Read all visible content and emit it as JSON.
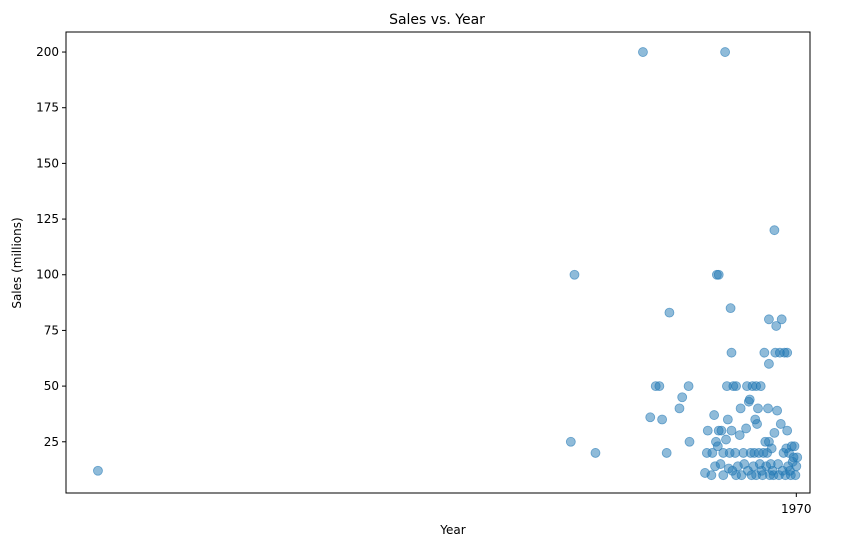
{
  "chart_data": {
    "type": "scatter",
    "title": "Sales vs. Year",
    "xlabel": "Year",
    "ylabel": "Sales (millions)",
    "xticks": [
      1970
    ],
    "yticks": [
      25,
      50,
      75,
      100,
      125,
      150,
      175,
      200
    ],
    "xlim": [
      1890,
      1971.5
    ],
    "ylim": [
      2,
      209
    ],
    "grid": false,
    "marker_color": "#1f77b4",
    "marker_alpha": 0.5,
    "points": [
      {
        "x": 1893.5,
        "y": 12
      },
      {
        "x": 1945.3,
        "y": 25
      },
      {
        "x": 1945.7,
        "y": 100
      },
      {
        "x": 1948.0,
        "y": 20
      },
      {
        "x": 1953.2,
        "y": 200
      },
      {
        "x": 1954.0,
        "y": 36
      },
      {
        "x": 1954.6,
        "y": 50
      },
      {
        "x": 1955.0,
        "y": 50
      },
      {
        "x": 1955.3,
        "y": 35
      },
      {
        "x": 1955.8,
        "y": 20
      },
      {
        "x": 1956.1,
        "y": 83
      },
      {
        "x": 1957.2,
        "y": 40
      },
      {
        "x": 1957.5,
        "y": 45
      },
      {
        "x": 1958.2,
        "y": 50
      },
      {
        "x": 1958.3,
        "y": 25
      },
      {
        "x": 1960.0,
        "y": 11
      },
      {
        "x": 1960.2,
        "y": 20
      },
      {
        "x": 1960.3,
        "y": 30
      },
      {
        "x": 1960.7,
        "y": 10
      },
      {
        "x": 1960.8,
        "y": 20
      },
      {
        "x": 1961.0,
        "y": 37
      },
      {
        "x": 1961.1,
        "y": 14
      },
      {
        "x": 1961.2,
        "y": 25
      },
      {
        "x": 1961.3,
        "y": 100
      },
      {
        "x": 1961.4,
        "y": 23
      },
      {
        "x": 1961.5,
        "y": 30
      },
      {
        "x": 1961.5,
        "y": 100
      },
      {
        "x": 1961.7,
        "y": 15
      },
      {
        "x": 1961.8,
        "y": 30
      },
      {
        "x": 1962.0,
        "y": 10
      },
      {
        "x": 1962.0,
        "y": 20
      },
      {
        "x": 1962.2,
        "y": 200
      },
      {
        "x": 1962.3,
        "y": 26
      },
      {
        "x": 1962.4,
        "y": 50
      },
      {
        "x": 1962.5,
        "y": 35
      },
      {
        "x": 1962.6,
        "y": 13
      },
      {
        "x": 1962.7,
        "y": 20
      },
      {
        "x": 1962.8,
        "y": 85
      },
      {
        "x": 1962.9,
        "y": 65
      },
      {
        "x": 1962.9,
        "y": 30
      },
      {
        "x": 1963.0,
        "y": 12
      },
      {
        "x": 1963.1,
        "y": 50
      },
      {
        "x": 1963.3,
        "y": 20
      },
      {
        "x": 1963.4,
        "y": 10
      },
      {
        "x": 1963.4,
        "y": 50
      },
      {
        "x": 1963.6,
        "y": 14
      },
      {
        "x": 1963.8,
        "y": 28
      },
      {
        "x": 1963.9,
        "y": 40
      },
      {
        "x": 1964.0,
        "y": 10
      },
      {
        "x": 1964.2,
        "y": 20
      },
      {
        "x": 1964.3,
        "y": 15
      },
      {
        "x": 1964.5,
        "y": 31
      },
      {
        "x": 1964.6,
        "y": 50
      },
      {
        "x": 1964.7,
        "y": 12
      },
      {
        "x": 1964.8,
        "y": 43
      },
      {
        "x": 1964.9,
        "y": 44
      },
      {
        "x": 1965.0,
        "y": 20
      },
      {
        "x": 1965.1,
        "y": 10
      },
      {
        "x": 1965.2,
        "y": 50
      },
      {
        "x": 1965.3,
        "y": 14
      },
      {
        "x": 1965.4,
        "y": 20
      },
      {
        "x": 1965.5,
        "y": 35
      },
      {
        "x": 1965.6,
        "y": 50
      },
      {
        "x": 1965.6,
        "y": 10
      },
      {
        "x": 1965.7,
        "y": 33
      },
      {
        "x": 1965.8,
        "y": 40
      },
      {
        "x": 1965.9,
        "y": 20
      },
      {
        "x": 1966.0,
        "y": 15
      },
      {
        "x": 1966.1,
        "y": 50
      },
      {
        "x": 1966.2,
        "y": 12
      },
      {
        "x": 1966.3,
        "y": 10
      },
      {
        "x": 1966.4,
        "y": 20
      },
      {
        "x": 1966.5,
        "y": 65
      },
      {
        "x": 1966.6,
        "y": 25
      },
      {
        "x": 1966.7,
        "y": 14
      },
      {
        "x": 1966.8,
        "y": 20
      },
      {
        "x": 1966.9,
        "y": 40
      },
      {
        "x": 1967.0,
        "y": 25
      },
      {
        "x": 1967.0,
        "y": 60
      },
      {
        "x": 1967.0,
        "y": 80
      },
      {
        "x": 1967.1,
        "y": 10
      },
      {
        "x": 1967.2,
        "y": 15
      },
      {
        "x": 1967.3,
        "y": 22
      },
      {
        "x": 1967.4,
        "y": 12
      },
      {
        "x": 1967.5,
        "y": 10
      },
      {
        "x": 1967.6,
        "y": 120
      },
      {
        "x": 1967.6,
        "y": 29
      },
      {
        "x": 1967.7,
        "y": 65
      },
      {
        "x": 1967.8,
        "y": 77
      },
      {
        "x": 1967.9,
        "y": 39
      },
      {
        "x": 1968.0,
        "y": 15
      },
      {
        "x": 1968.1,
        "y": 10
      },
      {
        "x": 1968.2,
        "y": 65
      },
      {
        "x": 1968.3,
        "y": 33
      },
      {
        "x": 1968.4,
        "y": 80
      },
      {
        "x": 1968.5,
        "y": 12
      },
      {
        "x": 1968.6,
        "y": 20
      },
      {
        "x": 1968.7,
        "y": 65
      },
      {
        "x": 1968.8,
        "y": 10
      },
      {
        "x": 1968.9,
        "y": 22
      },
      {
        "x": 1969.0,
        "y": 65
      },
      {
        "x": 1969.0,
        "y": 30
      },
      {
        "x": 1969.1,
        "y": 14
      },
      {
        "x": 1969.2,
        "y": 20
      },
      {
        "x": 1969.3,
        "y": 12
      },
      {
        "x": 1969.4,
        "y": 10
      },
      {
        "x": 1969.5,
        "y": 23
      },
      {
        "x": 1969.6,
        "y": 16
      },
      {
        "x": 1969.7,
        "y": 18
      },
      {
        "x": 1969.8,
        "y": 23
      },
      {
        "x": 1969.9,
        "y": 10
      },
      {
        "x": 1970.0,
        "y": 14
      },
      {
        "x": 1970.1,
        "y": 18
      }
    ]
  }
}
